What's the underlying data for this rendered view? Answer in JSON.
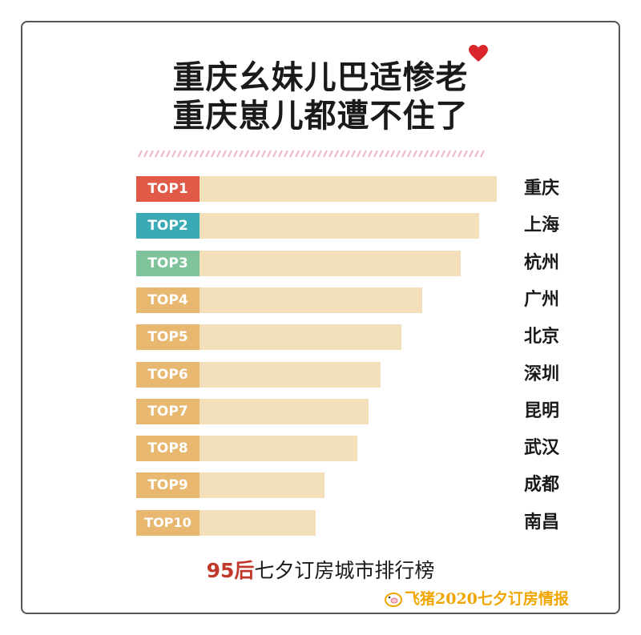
{
  "title": {
    "line1": "重庆幺妹儿巴适惨老",
    "line2": "重庆崽儿都遭不住了"
  },
  "colors": {
    "bar": "#f4dfbb",
    "rank1": "#e05a47",
    "rank2": "#3aaab4",
    "rank3": "#7ec39a",
    "rank_rest": "#e8b770",
    "caption_highlight": "#c0392b",
    "brand": "#f0a500",
    "heart": "#d9262c"
  },
  "chart_data": {
    "type": "bar",
    "orientation": "horizontal",
    "categories": [
      "重庆",
      "上海",
      "杭州",
      "广州",
      "北京",
      "深圳",
      "昆明",
      "武汉",
      "成都",
      "南昌"
    ],
    "rank_labels": [
      "TOP1",
      "TOP2",
      "TOP3",
      "TOP4",
      "TOP5",
      "TOP6",
      "TOP7",
      "TOP8",
      "TOP9",
      "TOP10"
    ],
    "values": [
      100,
      94,
      88,
      75,
      68,
      61,
      57,
      53,
      42,
      39
    ],
    "title": "95后七夕订房城市排行榜",
    "xlabel": "",
    "ylabel": "",
    "grid": false,
    "legend": "none"
  },
  "caption": {
    "highlight": "95后",
    "rest": "七夕订房城市排行榜"
  },
  "brand": {
    "icon": "pig-logo-icon",
    "text": "飞猪2020七夕订房情报"
  }
}
